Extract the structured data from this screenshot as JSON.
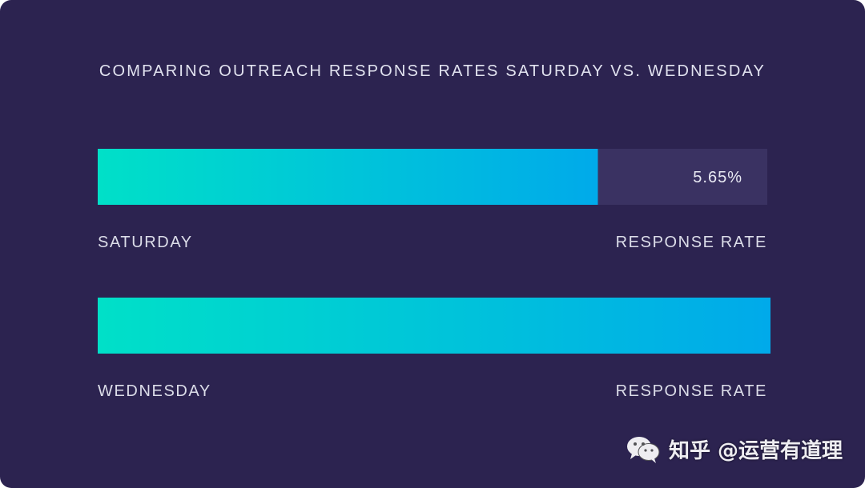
{
  "chart_data": {
    "type": "bar",
    "orientation": "horizontal",
    "title": "COMPARING OUTREACH RESPONSE RATES SATURDAY VS. WEDNESDAY",
    "categories": [
      "SATURDAY",
      "WEDNESDAY"
    ],
    "values": [
      5.65,
      7.6
    ],
    "value_labels": [
      "5.65%",
      ""
    ],
    "axis_label": "RESPONSE RATE",
    "xlim": [
      0,
      7.6
    ],
    "grid": false,
    "legend": "none",
    "colors": {
      "background": "#2c2350",
      "track": "#3a3262",
      "bar_gradient_start": "#00e0c8",
      "bar_gradient_end": "#00aaea"
    }
  },
  "watermark": {
    "icon": "wechat-icon",
    "text": "知乎 @运营有道理"
  }
}
